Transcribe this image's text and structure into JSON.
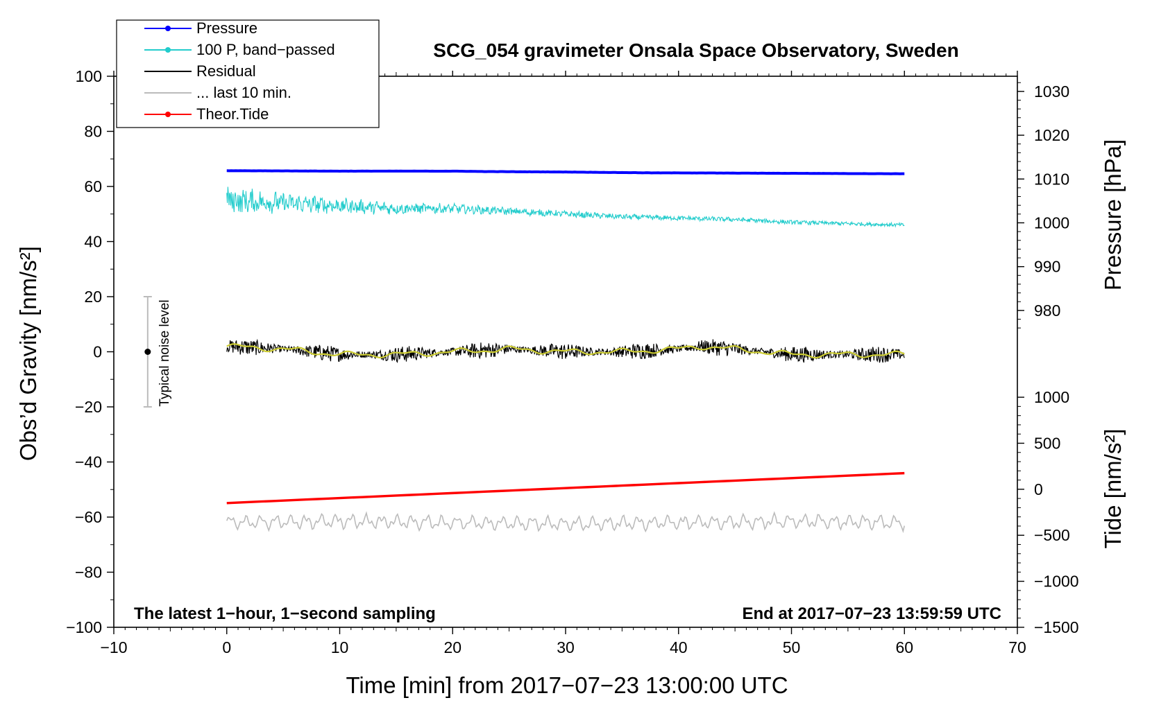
{
  "chart_data": {
    "type": "line",
    "title": "SCG_054 gravimeter Onsala Space Observatory, Sweden",
    "xlabel": "Time [min] from 2017−07−23 13:00:00 UTC",
    "ylabel_left": "Obs’d Gravity [nm/s²]",
    "ylabel_right_pressure": "Pressure [hPa]",
    "ylabel_right_tide": "Tide [nm/s²]",
    "footer_left": "The latest 1−hour, 1−second sampling",
    "footer_right": "End at 2017−07−23 13:59:59 UTC",
    "xlim": [
      -10,
      70
    ],
    "ylim_left": [
      -100,
      100
    ],
    "x_ticks": [
      {
        "v": -10,
        "label": "−10"
      },
      {
        "v": 0,
        "label": "0"
      },
      {
        "v": 10,
        "label": "10"
      },
      {
        "v": 20,
        "label": "20"
      },
      {
        "v": 30,
        "label": "30"
      },
      {
        "v": 40,
        "label": "40"
      },
      {
        "v": 50,
        "label": "50"
      },
      {
        "v": 60,
        "label": "60"
      },
      {
        "v": 70,
        "label": "70"
      }
    ],
    "y_left_ticks": [
      {
        "v": 100,
        "label": "100"
      },
      {
        "v": 80,
        "label": "80"
      },
      {
        "v": 60,
        "label": "60"
      },
      {
        "v": 40,
        "label": "40"
      },
      {
        "v": 20,
        "label": "20"
      },
      {
        "v": 0,
        "label": "0"
      },
      {
        "v": -20,
        "label": "−20"
      },
      {
        "v": -40,
        "label": "−40"
      },
      {
        "v": -60,
        "label": "−60"
      },
      {
        "v": -80,
        "label": "−80"
      },
      {
        "v": -100,
        "label": "−100"
      }
    ],
    "pressure_axis": {
      "left_equiv": [
        [
          1030,
          94.5
        ],
        [
          980,
          15.0
        ]
      ],
      "ticks": [
        {
          "v": 1030,
          "label": "1030"
        },
        {
          "v": 1020,
          "label": "1020"
        },
        {
          "v": 1010,
          "label": "1010"
        },
        {
          "v": 1000,
          "label": "1000"
        },
        {
          "v": 990,
          "label": "990"
        },
        {
          "v": 980,
          "label": "980"
        }
      ]
    },
    "tide_axis": {
      "left_equiv": [
        [
          1000,
          -16.5
        ],
        [
          -1500,
          -100
        ]
      ],
      "ticks": [
        {
          "v": 1000,
          "label": "1000"
        },
        {
          "v": 500,
          "label": "500"
        },
        {
          "v": 0,
          "label": "0"
        },
        {
          "v": -500,
          "label": "−500"
        },
        {
          "v": -1000,
          "label": "−1000"
        },
        {
          "v": -1500,
          "label": "−1500"
        }
      ]
    },
    "series": [
      {
        "name": "Pressure",
        "color": "#0000ff",
        "unit": "hPa",
        "x": [
          0,
          10,
          20,
          23,
          30,
          38,
          40,
          50,
          60
        ],
        "values": [
          1011.9,
          1011.8,
          1011.8,
          1011.7,
          1011.6,
          1011.4,
          1011.4,
          1011.3,
          1011.2
        ]
      },
      {
        "name": "100 P, band−passed",
        "color": "#22cccc",
        "unit": "nm/s²",
        "x": [
          0,
          5,
          10,
          15,
          20,
          25,
          30,
          35,
          40,
          45,
          50,
          55,
          60
        ],
        "values": [
          55,
          54,
          53,
          52,
          52,
          51,
          50,
          49,
          48.5,
          48,
          47,
          46.5,
          46
        ]
      },
      {
        "name": "Residual",
        "color": "#000000",
        "unit": "nm/s²",
        "x": [
          0,
          5,
          10,
          15,
          20,
          25,
          30,
          35,
          40,
          42,
          45,
          50,
          55,
          60
        ],
        "values": [
          2,
          1,
          -1,
          -1,
          0,
          1,
          0,
          0,
          1,
          2,
          1,
          -1,
          -1,
          -1
        ]
      },
      {
        "name": "Residual smoothed",
        "color": "#cccc33",
        "unit": "nm/s²",
        "x": [
          0,
          5,
          10,
          15,
          20,
          25,
          30,
          35,
          40,
          42,
          45,
          50,
          55,
          60
        ],
        "values": [
          2,
          1,
          -1,
          -1,
          0,
          1,
          0,
          0,
          1,
          2,
          1,
          -1,
          -1,
          -1
        ]
      },
      {
        "name": "... last 10 min.",
        "color": "#bbbbbb",
        "unit": "nm/s²",
        "x": [
          0,
          10,
          20,
          30,
          40,
          50,
          60
        ],
        "values": [
          -62,
          -61.5,
          -62,
          -62.5,
          -62,
          -61.5,
          -62
        ]
      },
      {
        "name": "Theor.Tide",
        "color": "#ff0000",
        "unit": "nm/s²",
        "x": [
          0,
          60
        ],
        "values": [
          -150,
          175
        ]
      }
    ],
    "noise_marker": {
      "label": "Typical noise level",
      "x": -7,
      "center": 0,
      "range": [
        -20,
        20
      ]
    },
    "legend": {
      "placement": "top-left",
      "entries": [
        {
          "label": "Pressure",
          "color": "#0000ff",
          "marker": true
        },
        {
          "label": "100 P, band−passed",
          "color": "#22cccc",
          "marker": true
        },
        {
          "label": "Residual",
          "color": "#000000",
          "marker": false
        },
        {
          "label": "... last 10 min.",
          "color": "#bbbbbb",
          "marker": false
        },
        {
          "label": "Theor.Tide",
          "color": "#ff0000",
          "marker": true
        }
      ]
    }
  }
}
